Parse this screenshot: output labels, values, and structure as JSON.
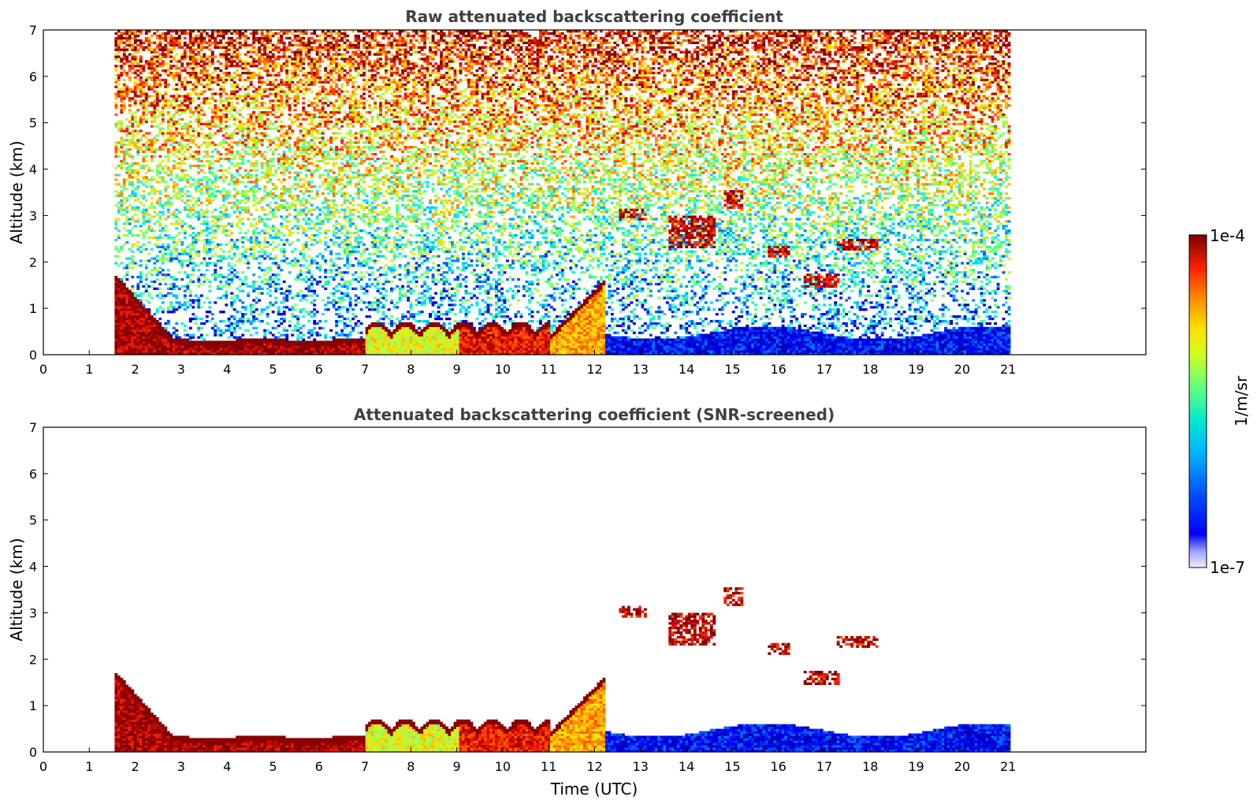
{
  "chart_data": [
    {
      "type": "heatmap",
      "title": "Raw attenuated backscattering coefficient",
      "xlabel": "",
      "ylabel": "Altitude (km)",
      "xlim": [
        0,
        24
      ],
      "ylim": [
        0,
        7
      ],
      "x_ticks": [
        "0",
        "1",
        "2",
        "3",
        "4",
        "5",
        "6",
        "7",
        "8",
        "9",
        "10",
        "11",
        "12",
        "13",
        "14",
        "15",
        "16",
        "17",
        "18",
        "19",
        "20",
        "21"
      ],
      "y_ticks": [
        "0",
        "1",
        "2",
        "3",
        "4",
        "5",
        "6",
        "7"
      ],
      "data_time_range_utc": [
        1.55,
        21.0
      ],
      "features": [
        {
          "name": "boundary layer",
          "x_range": [
            1.55,
            12.1
          ],
          "top_km": [
            1.7,
            0.3,
            0.25,
            0.4,
            0.45,
            1.5
          ],
          "level": "high"
        },
        {
          "name": "low aerosol",
          "x_range": [
            12.6,
            21.0
          ],
          "top_km": 0.6,
          "level": "low"
        },
        {
          "name": "cloud",
          "x": 12.8,
          "y": 3.0
        },
        {
          "name": "cloud",
          "x": 14.1,
          "y": 2.6
        },
        {
          "name": "cloud",
          "x": 16.0,
          "y": 2.2
        },
        {
          "name": "cloud",
          "x": 17.7,
          "y": 2.35
        },
        {
          "name": "cloud",
          "x": 16.9,
          "y": 1.6
        }
      ]
    },
    {
      "type": "heatmap",
      "title": "Attenuated backscattering coefficient (SNR-screened)",
      "xlabel": "Time (UTC)",
      "ylabel": "Altitude (km)",
      "xlim": [
        0,
        24
      ],
      "ylim": [
        0,
        7
      ],
      "x_ticks": [
        "0",
        "1",
        "2",
        "3",
        "4",
        "5",
        "6",
        "7",
        "8",
        "9",
        "10",
        "11",
        "12",
        "13",
        "14",
        "15",
        "16",
        "17",
        "18",
        "19",
        "20",
        "21"
      ],
      "y_ticks": [
        "0",
        "1",
        "2",
        "3",
        "4",
        "5",
        "6",
        "7"
      ],
      "data_time_range_utc": [
        1.55,
        21.0
      ]
    }
  ],
  "colorbar": {
    "label": "1/m/sr",
    "max_label": "1e-4",
    "min_label": "1e-7",
    "scale": "log",
    "colormap": [
      "#0000a0",
      "#0000ff",
      "#0080ff",
      "#00e0ff",
      "#40ffb0",
      "#b0ff40",
      "#ffe000",
      "#ff8000",
      "#ff2000",
      "#a00000",
      "#700000"
    ]
  }
}
